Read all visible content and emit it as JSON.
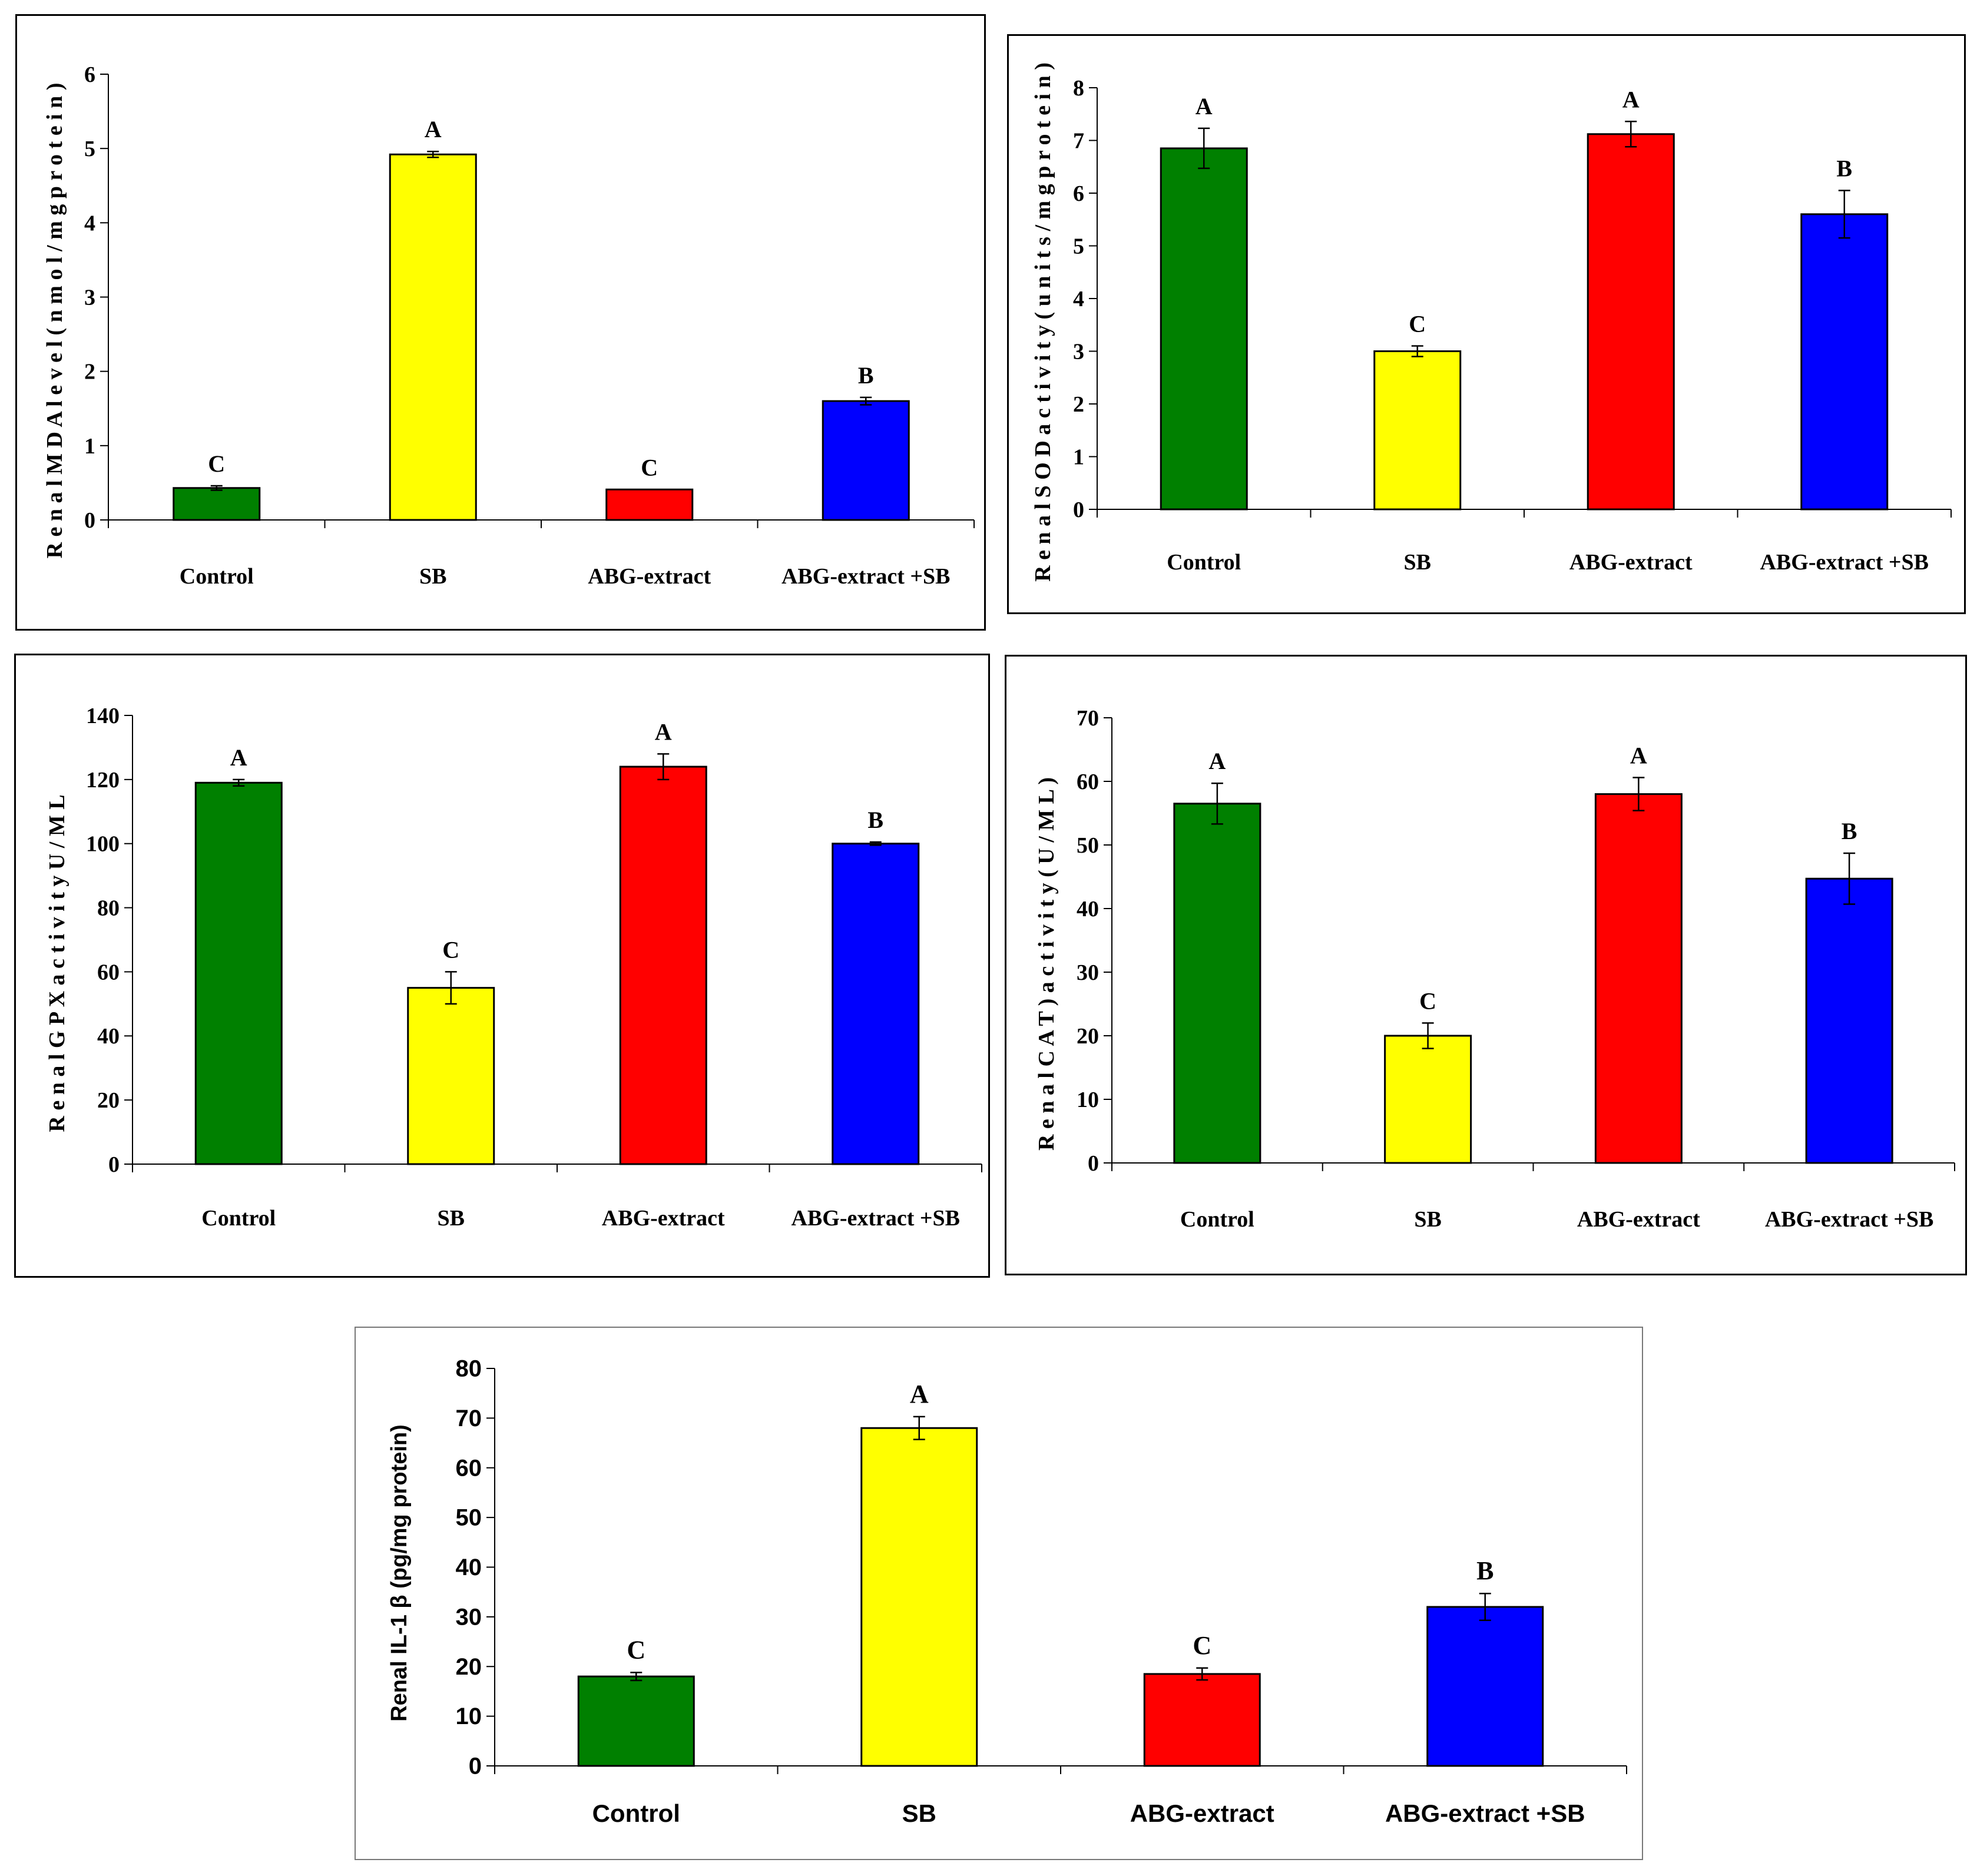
{
  "colors": {
    "control": "#008000",
    "sb": "#ffff00",
    "abg": "#ff0000",
    "abg_sb": "#0000ff"
  },
  "chart_data": [
    {
      "type": "bar",
      "ylabel": "R e n a l  M D A  l e v e l  ( n m o l / m g  p r o t e i n )",
      "ylim": [
        0,
        6
      ],
      "yticks": [
        0,
        1,
        2,
        3,
        4,
        5,
        6
      ],
      "categories": [
        "Control",
        "SB",
        "ABG-extract",
        "ABG-extract +SB"
      ],
      "values": [
        0.43,
        4.92,
        0.41,
        1.6
      ],
      "errors": [
        0.03,
        0.04,
        0.0,
        0.05
      ],
      "letters": [
        "C",
        "A",
        "C",
        "B"
      ],
      "colors": [
        "#008000",
        "#ffff00",
        "#ff0000",
        "#0000ff"
      ],
      "grid": false
    },
    {
      "type": "bar",
      "ylabel": "R e n a l  S O D  a c t i v i t y  ( u n i t s / m g  p r o t e i n )",
      "ylim": [
        0,
        8
      ],
      "yticks": [
        0,
        1,
        2,
        3,
        4,
        5,
        6,
        7,
        8
      ],
      "categories": [
        "Control",
        "SB",
        "ABG-extract",
        "ABG-extract +SB"
      ],
      "values": [
        6.85,
        3.0,
        7.12,
        5.6
      ],
      "errors": [
        0.38,
        0.1,
        0.24,
        0.45
      ],
      "letters": [
        "A",
        "C",
        "A",
        "B"
      ],
      "colors": [
        "#008000",
        "#ffff00",
        "#ff0000",
        "#0000ff"
      ],
      "grid": false
    },
    {
      "type": "bar",
      "ylabel": "R e n a l  G P X  a c t i v i t y  U / M L",
      "ylim": [
        0,
        140
      ],
      "yticks": [
        0,
        20,
        40,
        60,
        80,
        100,
        120,
        140
      ],
      "categories": [
        "Control",
        "SB",
        "ABG-extract",
        "ABG-extract +SB"
      ],
      "values": [
        119,
        55,
        124,
        100
      ],
      "errors": [
        1,
        5,
        4,
        0.5
      ],
      "letters": [
        "A",
        "C",
        "A",
        "B"
      ],
      "colors": [
        "#008000",
        "#ffff00",
        "#ff0000",
        "#0000ff"
      ],
      "grid": false
    },
    {
      "type": "bar",
      "ylabel": "R e n a l  C A T )  a c t i v i t y  ( U / M L )",
      "ylim": [
        0,
        70
      ],
      "yticks": [
        0,
        10,
        20,
        30,
        40,
        50,
        60,
        70
      ],
      "categories": [
        "Control",
        "SB",
        "ABG-extract",
        "ABG-extract +SB"
      ],
      "values": [
        56.5,
        20,
        58,
        44.7
      ],
      "errors": [
        3.2,
        2,
        2.6,
        4
      ],
      "letters": [
        "A",
        "C",
        "A",
        "B"
      ],
      "colors": [
        "#008000",
        "#ffff00",
        "#ff0000",
        "#0000ff"
      ],
      "grid": false
    },
    {
      "type": "bar",
      "ylabel": "Renal  IL-1 β (pg/mg protein)",
      "ylim": [
        0,
        80
      ],
      "yticks": [
        0,
        10,
        20,
        30,
        40,
        50,
        60,
        70,
        80
      ],
      "categories": [
        "Control",
        "SB",
        "ABG-extract",
        "ABG-extract +SB"
      ],
      "values": [
        18,
        68,
        18.5,
        32
      ],
      "errors": [
        0.8,
        2.3,
        1.2,
        2.7
      ],
      "letters": [
        "C",
        "A",
        "C",
        "B"
      ],
      "colors": [
        "#008000",
        "#ffff00",
        "#ff0000",
        "#0000ff"
      ],
      "grid": false
    }
  ]
}
